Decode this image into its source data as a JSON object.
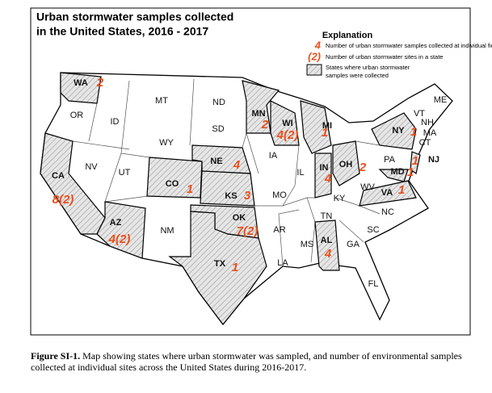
{
  "title_lines": [
    "Urban stormwater samples collected",
    "in the United States, 2016 - 2017"
  ],
  "legend": {
    "title": "Explanation",
    "items": [
      {
        "symbol": "4",
        "lines": [
          "Number of urban stormwater samples collected at individual field site"
        ]
      },
      {
        "symbol": "(2)",
        "lines": [
          "Number of urban stormwater sites in a state"
        ]
      },
      {
        "lines": [
          "States where urban stormwater",
          "samples were collected"
        ]
      }
    ]
  },
  "sampled_states": [
    {
      "abbr": "WA",
      "count": "2"
    },
    {
      "abbr": "CA",
      "count": "8(2)"
    },
    {
      "abbr": "AZ",
      "count": "4(2)"
    },
    {
      "abbr": "CO",
      "count": "1"
    },
    {
      "abbr": "NE",
      "count": "4"
    },
    {
      "abbr": "KS",
      "count": "3"
    },
    {
      "abbr": "OK",
      "count": "7(2)"
    },
    {
      "abbr": "TX",
      "count": "1"
    },
    {
      "abbr": "MN",
      "count": "2"
    },
    {
      "abbr": "WI",
      "count": "4(2)"
    },
    {
      "abbr": "MI",
      "count": "1"
    },
    {
      "abbr": "IN",
      "count": "4"
    },
    {
      "abbr": "OH",
      "count": "2"
    },
    {
      "abbr": "NY",
      "count": "1"
    },
    {
      "abbr": "NJ",
      "count": "1"
    },
    {
      "abbr": "MD",
      "count": "1"
    },
    {
      "abbr": "VA",
      "count": "1"
    },
    {
      "abbr": "AL",
      "count": "4"
    }
  ],
  "other_states": [
    "OR",
    "ID",
    "MT",
    "ND",
    "SD",
    "WY",
    "NV",
    "UT",
    "NM",
    "IA",
    "IL",
    "MO",
    "AR",
    "LA",
    "MS",
    "TN",
    "KY",
    "GA",
    "FL",
    "SC",
    "NC",
    "PA",
    "WV",
    "VT",
    "NH",
    "MA",
    "CT",
    "ME"
  ],
  "caption": {
    "label": "Figure SI-1.",
    "text": "Map showing states where urban stormwater was sampled, and number of environmental samples collected at individual sites across the United States during 2016-2017."
  }
}
